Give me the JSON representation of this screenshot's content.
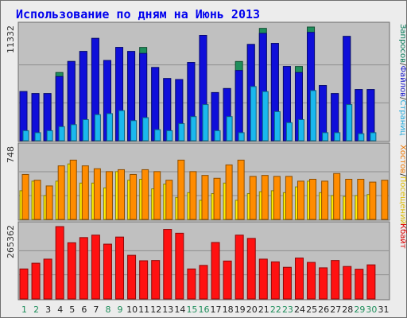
{
  "chart_data": {
    "type": "bar",
    "title": "Использование по дням на Июнь 2013",
    "categories": [
      "1",
      "2",
      "3",
      "4",
      "5",
      "6",
      "7",
      "8",
      "9",
      "10",
      "11",
      "12",
      "13",
      "14",
      "15",
      "16",
      "17",
      "18",
      "19",
      "20",
      "21",
      "22",
      "23",
      "24",
      "25",
      "26",
      "27",
      "28",
      "29",
      "30",
      "31"
    ],
    "weekend_days": [
      "1",
      "2",
      "8",
      "9",
      "15",
      "16",
      "22",
      "23",
      "29",
      "30"
    ],
    "panels": [
      {
        "name": "requests",
        "ymax_label": "11332",
        "ymax": 11332,
        "side_label_parts": [
          {
            "text": "Запросов",
            "color": "#007755"
          },
          {
            "text": "/",
            "color": "#333333"
          },
          {
            "text": "Файлов",
            "color": "#1a1acc"
          },
          {
            "text": "/",
            "color": "#333333"
          },
          {
            "text": "Страниц",
            "color": "#22aadd"
          }
        ],
        "series": [
          {
            "name": "Запросов",
            "color": "#1f8e5c",
            "values": [
              4900,
              4700,
              4700,
              6800,
              7900,
              8900,
              10200,
              8000,
              9300,
              8900,
              9300,
              7300,
              6200,
              6100,
              7800,
              10500,
              4800,
              5200,
              7900,
              9600,
              11200,
              9700,
              7400,
              7400,
              11332,
              5500,
              4700,
              10400,
              5100,
              5100,
              0
            ]
          },
          {
            "name": "Файлов",
            "color": "#0f0fd9",
            "values": [
              4900,
              4700,
              4700,
              6400,
              7900,
              8900,
              10200,
              8000,
              9300,
              8900,
              8700,
              7300,
              6200,
              6100,
              7800,
              10500,
              4800,
              5200,
              7000,
              9600,
              10700,
              9700,
              7400,
              6800,
              10800,
              5500,
              4700,
              10400,
              5100,
              5100,
              0
            ]
          },
          {
            "name": "Страниц",
            "color": "#1ab8ee",
            "values": [
              1000,
              800,
              1000,
              1400,
              1600,
              2100,
              2600,
              2700,
              3000,
              2000,
              2300,
              1100,
              1000,
              1700,
              2400,
              3600,
              1000,
              2400,
              800,
              5400,
              4900,
              2900,
              1800,
              2100,
              5000,
              800,
              800,
              3600,
              700,
              800,
              0
            ]
          }
        ]
      },
      {
        "name": "visits",
        "ymax_label": "748",
        "ymax": 748,
        "side_label_parts": [
          {
            "text": "Хостов",
            "color": "#ee7700"
          },
          {
            "text": "/",
            "color": "#333333"
          },
          {
            "text": "Посещений",
            "color": "#ddbb00"
          }
        ],
        "series": [
          {
            "name": "Посещений",
            "color": "#ffee00",
            "values": [
              300,
              400,
              250,
              400,
              580,
              380,
              380,
              330,
              500,
              410,
              420,
              320,
              370,
              230,
              280,
              200,
              270,
              380,
              200,
              270,
              290,
              300,
              280,
              340,
              400,
              280,
              250,
              240,
              250,
              260,
              0
            ]
          },
          {
            "name": "Хостов",
            "color": "#ff8c00",
            "values": [
              470,
              410,
              350,
              560,
              620,
              560,
              530,
              500,
              520,
              470,
              520,
              500,
              410,
              620,
              500,
              460,
              430,
              570,
              620,
              450,
              460,
              450,
              450,
              400,
              420,
              400,
              480,
              420,
              420,
              390,
              410
            ]
          }
        ]
      },
      {
        "name": "traffic",
        "ymax_label": "265362",
        "ymax": 265362,
        "side_label_parts": [
          {
            "text": "Кбайт",
            "color": "#dd0000"
          }
        ],
        "series": [
          {
            "name": "Кбайт",
            "color": "#ff1111",
            "values": [
              110000,
              131000,
              146000,
              265362,
              206000,
              225000,
              234000,
              201000,
              227000,
              160000,
              140000,
              141000,
              255000,
              241000,
              110000,
              123000,
              207000,
              139000,
              234000,
              222000,
              146000,
              136000,
              116000,
              150000,
              134000,
              114000,
              141000,
              119000,
              109000,
              125000,
              0
            ]
          }
        ]
      }
    ]
  }
}
